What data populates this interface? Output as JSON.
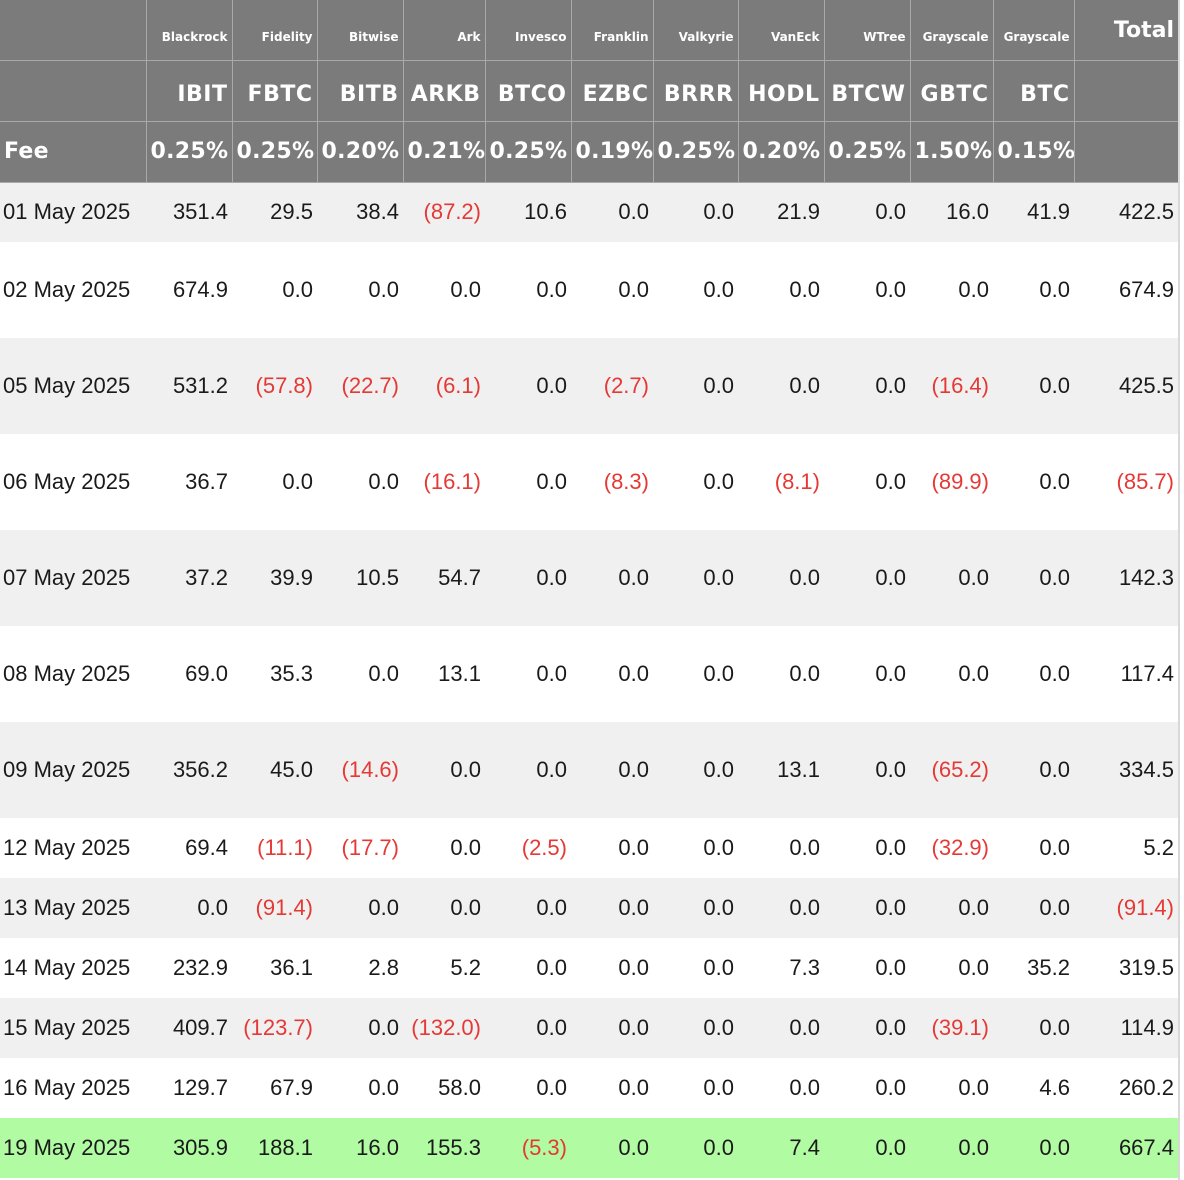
{
  "header": {
    "issuers": [
      "Blackrock",
      "Fidelity",
      "Bitwise",
      "Ark",
      "Invesco",
      "Franklin",
      "Valkyrie",
      "VanEck",
      "WTree",
      "Grayscale",
      "Grayscale"
    ],
    "total_label": "Total",
    "tickers": [
      "IBIT",
      "FBTC",
      "BITB",
      "ARKB",
      "BTCO",
      "EZBC",
      "BRRR",
      "HODL",
      "BTCW",
      "GBTC",
      "BTC"
    ],
    "fee_label": "Fee",
    "fees": [
      "0.25%",
      "0.25%",
      "0.20%",
      "0.21%",
      "0.25%",
      "0.19%",
      "0.25%",
      "0.20%",
      "0.25%",
      "1.50%",
      "0.15%"
    ]
  },
  "rows": [
    {
      "date": "01 May 2025",
      "values": [
        "351.4",
        "29.5",
        "38.4",
        "(87.2)",
        "10.6",
        "0.0",
        "0.0",
        "21.9",
        "0.0",
        "16.0",
        "41.9",
        "422.5"
      ]
    },
    {
      "date": "02 May 2025",
      "values": [
        "674.9",
        "0.0",
        "0.0",
        "0.0",
        "0.0",
        "0.0",
        "0.0",
        "0.0",
        "0.0",
        "0.0",
        "0.0",
        "674.9"
      ]
    },
    {
      "date": "05 May 2025",
      "values": [
        "531.2",
        "(57.8)",
        "(22.7)",
        "(6.1)",
        "0.0",
        "(2.7)",
        "0.0",
        "0.0",
        "0.0",
        "(16.4)",
        "0.0",
        "425.5"
      ]
    },
    {
      "date": "06 May 2025",
      "values": [
        "36.7",
        "0.0",
        "0.0",
        "(16.1)",
        "0.0",
        "(8.3)",
        "0.0",
        "(8.1)",
        "0.0",
        "(89.9)",
        "0.0",
        "(85.7)"
      ]
    },
    {
      "date": "07 May 2025",
      "values": [
        "37.2",
        "39.9",
        "10.5",
        "54.7",
        "0.0",
        "0.0",
        "0.0",
        "0.0",
        "0.0",
        "0.0",
        "0.0",
        "142.3"
      ]
    },
    {
      "date": "08 May 2025",
      "values": [
        "69.0",
        "35.3",
        "0.0",
        "13.1",
        "0.0",
        "0.0",
        "0.0",
        "0.0",
        "0.0",
        "0.0",
        "0.0",
        "117.4"
      ]
    },
    {
      "date": "09 May 2025",
      "values": [
        "356.2",
        "45.0",
        "(14.6)",
        "0.0",
        "0.0",
        "0.0",
        "0.0",
        "13.1",
        "0.0",
        "(65.2)",
        "0.0",
        "334.5"
      ]
    },
    {
      "date": "12 May 2025",
      "values": [
        "69.4",
        "(11.1)",
        "(17.7)",
        "0.0",
        "(2.5)",
        "0.0",
        "0.0",
        "0.0",
        "0.0",
        "(32.9)",
        "0.0",
        "5.2"
      ]
    },
    {
      "date": "13 May 2025",
      "values": [
        "0.0",
        "(91.4)",
        "0.0",
        "0.0",
        "0.0",
        "0.0",
        "0.0",
        "0.0",
        "0.0",
        "0.0",
        "0.0",
        "(91.4)"
      ]
    },
    {
      "date": "14 May 2025",
      "values": [
        "232.9",
        "36.1",
        "2.8",
        "5.2",
        "0.0",
        "0.0",
        "0.0",
        "7.3",
        "0.0",
        "0.0",
        "35.2",
        "319.5"
      ]
    },
    {
      "date": "15 May 2025",
      "values": [
        "409.7",
        "(123.7)",
        "0.0",
        "(132.0)",
        "0.0",
        "0.0",
        "0.0",
        "0.0",
        "0.0",
        "(39.1)",
        "0.0",
        "114.9"
      ]
    },
    {
      "date": "16 May 2025",
      "values": [
        "129.7",
        "67.9",
        "0.0",
        "58.0",
        "0.0",
        "0.0",
        "0.0",
        "0.0",
        "0.0",
        "0.0",
        "4.6",
        "260.2"
      ]
    },
    {
      "date": "19 May 2025",
      "values": [
        "305.9",
        "188.1",
        "16.0",
        "155.3",
        "(5.3)",
        "0.0",
        "0.0",
        "7.4",
        "0.0",
        "0.0",
        "0.0",
        "667.4"
      ]
    }
  ],
  "colors": {
    "header_bg": "#7b7b7b",
    "header_text": "#ffffff",
    "row_alt_bg": "#f0f0f0",
    "row_highlight_bg": "#b1fba3",
    "negative_text": "#e53935",
    "text": "#1a1a1a"
  }
}
